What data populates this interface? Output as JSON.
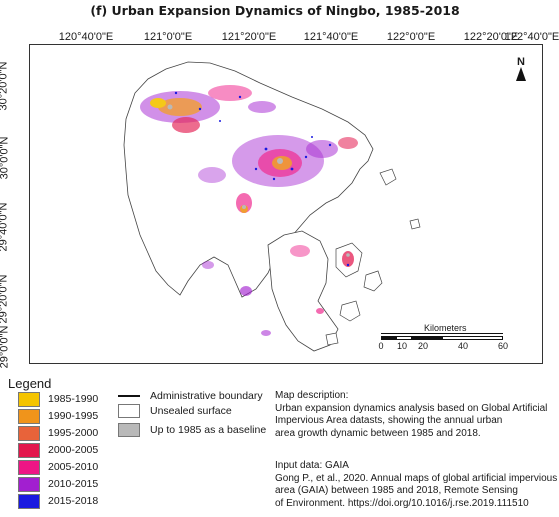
{
  "title": "(f)  Urban Expansion Dynamics of Ningbo, 1985-2018",
  "longitude_labels": [
    "120°40'0\"E",
    "121°0'0\"E",
    "121°20'0\"E",
    "121°40'0\"E",
    "122°0'0\"E",
    "122°20'0\"E",
    "122°40'0\"E"
  ],
  "latitude_labels": [
    "30°20'0\"N",
    "30°0'0\"N",
    "29°40'0\"N",
    "29°20'0\"N",
    "29°0'0\"N"
  ],
  "north_label": "N",
  "scale": {
    "title": "Kilometers",
    "ticks": [
      "0",
      "10",
      "20",
      "40",
      "60"
    ],
    "tick_values": [
      0,
      10,
      20,
      40,
      60
    ]
  },
  "legend": {
    "title": "Legend",
    "periods": [
      {
        "label": "1985-1990",
        "color": "#f5c400"
      },
      {
        "label": "1990-1995",
        "color": "#f0941b"
      },
      {
        "label": "1995-2000",
        "color": "#e8633a"
      },
      {
        "label": "2000-2005",
        "color": "#e3174d"
      },
      {
        "label": "2005-2010",
        "color": "#ee1585"
      },
      {
        "label": "2010-2015",
        "color": "#a21fd0"
      },
      {
        "label": "2015-2018",
        "color": "#1a1ae0"
      }
    ],
    "symbols": [
      {
        "label": "Administrative boundary",
        "type": "line"
      },
      {
        "label": "Unsealed surface",
        "type": "box",
        "color": "#ffffff"
      },
      {
        "label": "Up to 1985 as a baseline",
        "type": "box",
        "color": "#b9b9b9"
      }
    ]
  },
  "description": {
    "heading": "Map description:",
    "lines": [
      "Urban expansion dynamics analysis based on Global Artificial",
      "Impervious Area datasts, showing the annual urban",
      "area growth dynamic between 1985 and 2018."
    ]
  },
  "input_data": {
    "heading": "Input data: GAIA",
    "lines": [
      "Gong P., et al., 2020. Annual maps of global artificial impervious",
      "area (GAIA) between 1985 and 2018, Remote Sensing",
      "of Environment. https://doi.org/10.1016/j.rse.2019.111510"
    ]
  }
}
